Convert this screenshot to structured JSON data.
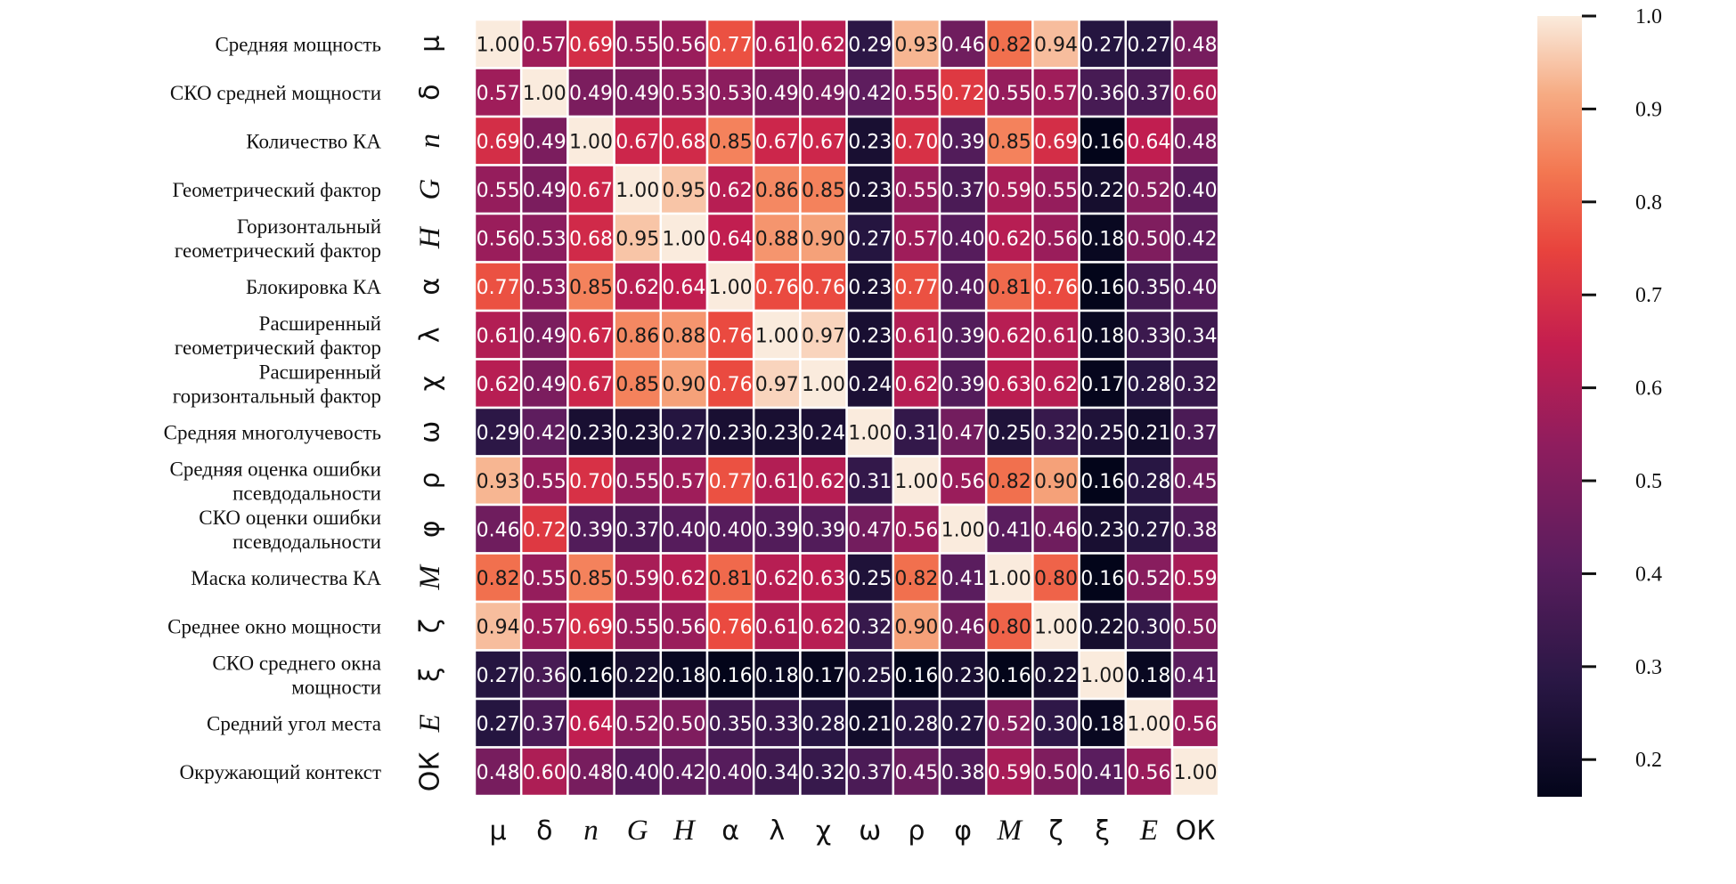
{
  "chart_data": {
    "type": "heatmap",
    "title": "",
    "row_descriptions": [
      [
        "Средняя мощность"
      ],
      [
        "СКО средней мощности"
      ],
      [
        "Количество  КА"
      ],
      [
        "Геометрический  фактор"
      ],
      [
        "Горизонтальный",
        "геометрический фактор"
      ],
      [
        "Блокировка  КА"
      ],
      [
        "Расширенный",
        "геометрический фактор"
      ],
      [
        "Расширенный",
        "горизонтальный фактор"
      ],
      [
        "Средняя многолучевость"
      ],
      [
        "Средняя оценка ошибки",
        "псевдодальности"
      ],
      [
        "СКО оценки ошибки",
        "псевдодальности"
      ],
      [
        "Маска количества КА"
      ],
      [
        "Среднее окно мощности"
      ],
      [
        "СКО среднего окна",
        "мощности"
      ],
      [
        "Средний угол места"
      ],
      [
        "Окружающий контекст"
      ]
    ],
    "symbols": [
      "μ",
      "δ",
      "n",
      "G",
      "H",
      "α",
      "λ",
      "χ",
      "ω",
      "ρ",
      "φ",
      "M",
      "ζ",
      "ξ",
      "E",
      "ОК"
    ],
    "italic_symbols": [
      "n",
      "G",
      "H",
      "M",
      "E"
    ],
    "values": [
      [
        1.0,
        0.57,
        0.69,
        0.55,
        0.56,
        0.77,
        0.61,
        0.62,
        0.29,
        0.93,
        0.46,
        0.82,
        0.94,
        0.27,
        0.27,
        0.48
      ],
      [
        0.57,
        1.0,
        0.49,
        0.49,
        0.53,
        0.53,
        0.49,
        0.49,
        0.42,
        0.55,
        0.72,
        0.55,
        0.57,
        0.36,
        0.37,
        0.6
      ],
      [
        0.69,
        0.49,
        1.0,
        0.67,
        0.68,
        0.85,
        0.67,
        0.67,
        0.23,
        0.7,
        0.39,
        0.85,
        0.69,
        0.16,
        0.64,
        0.48
      ],
      [
        0.55,
        0.49,
        0.67,
        1.0,
        0.95,
        0.62,
        0.86,
        0.85,
        0.23,
        0.55,
        0.37,
        0.59,
        0.55,
        0.22,
        0.52,
        0.4
      ],
      [
        0.56,
        0.53,
        0.68,
        0.95,
        1.0,
        0.64,
        0.88,
        0.9,
        0.27,
        0.57,
        0.4,
        0.62,
        0.56,
        0.18,
        0.5,
        0.42
      ],
      [
        0.77,
        0.53,
        0.85,
        0.62,
        0.64,
        1.0,
        0.76,
        0.76,
        0.23,
        0.77,
        0.4,
        0.81,
        0.76,
        0.16,
        0.35,
        0.4
      ],
      [
        0.61,
        0.49,
        0.67,
        0.86,
        0.88,
        0.76,
        1.0,
        0.97,
        0.23,
        0.61,
        0.39,
        0.62,
        0.61,
        0.18,
        0.33,
        0.34
      ],
      [
        0.62,
        0.49,
        0.67,
        0.85,
        0.9,
        0.76,
        0.97,
        1.0,
        0.24,
        0.62,
        0.39,
        0.63,
        0.62,
        0.17,
        0.28,
        0.32
      ],
      [
        0.29,
        0.42,
        0.23,
        0.23,
        0.27,
        0.23,
        0.23,
        0.24,
        1.0,
        0.31,
        0.47,
        0.25,
        0.32,
        0.25,
        0.21,
        0.37
      ],
      [
        0.93,
        0.55,
        0.7,
        0.55,
        0.57,
        0.77,
        0.61,
        0.62,
        0.31,
        1.0,
        0.56,
        0.82,
        0.9,
        0.16,
        0.28,
        0.45
      ],
      [
        0.46,
        0.72,
        0.39,
        0.37,
        0.4,
        0.4,
        0.39,
        0.39,
        0.47,
        0.56,
        1.0,
        0.41,
        0.46,
        0.23,
        0.27,
        0.38
      ],
      [
        0.82,
        0.55,
        0.85,
        0.59,
        0.62,
        0.81,
        0.62,
        0.63,
        0.25,
        0.82,
        0.41,
        1.0,
        0.8,
        0.16,
        0.52,
        0.59
      ],
      [
        0.94,
        0.57,
        0.69,
        0.55,
        0.56,
        0.76,
        0.61,
        0.62,
        0.32,
        0.9,
        0.46,
        0.8,
        1.0,
        0.22,
        0.3,
        0.5
      ],
      [
        0.27,
        0.36,
        0.16,
        0.22,
        0.18,
        0.16,
        0.18,
        0.17,
        0.25,
        0.16,
        0.23,
        0.16,
        0.22,
        1.0,
        0.18,
        0.41
      ],
      [
        0.27,
        0.37,
        0.64,
        0.52,
        0.5,
        0.35,
        0.33,
        0.28,
        0.21,
        0.28,
        0.27,
        0.52,
        0.3,
        0.18,
        1.0,
        0.56
      ],
      [
        0.48,
        0.6,
        0.48,
        0.4,
        0.42,
        0.4,
        0.34,
        0.32,
        0.37,
        0.45,
        0.38,
        0.59,
        0.5,
        0.41,
        0.56,
        1.0
      ]
    ],
    "value_range": [
      0.16,
      1.0
    ],
    "colorbar": {
      "ticks": [
        1.0,
        0.9,
        0.8,
        0.7,
        0.6,
        0.5,
        0.4,
        0.3,
        0.2
      ],
      "tick_labels": [
        "1.0",
        "0.9",
        "0.8",
        "0.7",
        "0.6",
        "0.5",
        "0.4",
        "0.3",
        "0.2"
      ]
    },
    "colormap_stops": [
      [
        0.0,
        "#03051a"
      ],
      [
        0.15,
        "#2a1745"
      ],
      [
        0.3,
        "#5b1d5e"
      ],
      [
        0.45,
        "#8f1d5e"
      ],
      [
        0.58,
        "#c41e4f"
      ],
      [
        0.7,
        "#e8433d"
      ],
      [
        0.8,
        "#f37751"
      ],
      [
        0.9,
        "#f6ab83"
      ],
      [
        1.0,
        "#faebdd"
      ]
    ],
    "cell_border_color": "#ffffff",
    "grid": false
  }
}
